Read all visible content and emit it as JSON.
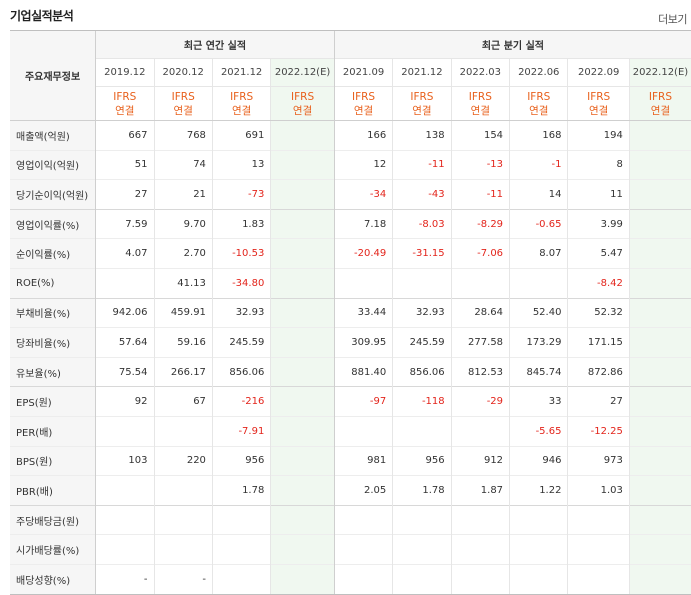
{
  "header": {
    "title": "기업실적분석",
    "more_label": "더보기"
  },
  "table": {
    "label_header": "주요재무정보",
    "annual_group": "최근 연간 실적",
    "quarter_group": "최근 분기 실적",
    "annual_periods": [
      "2019.12",
      "2020.12",
      "2021.12",
      "2022.12(E)"
    ],
    "quarter_periods": [
      "2021.09",
      "2021.12",
      "2022.03",
      "2022.06",
      "2022.09",
      "2022.12(E)"
    ],
    "ifrs_top": "IFRS",
    "ifrs_bottom": "연결",
    "rows": [
      {
        "label": "매출액(억원)",
        "values": [
          "667",
          "768",
          "691",
          "",
          "166",
          "138",
          "154",
          "168",
          "194",
          ""
        ]
      },
      {
        "label": "영업이익(억원)",
        "values": [
          "51",
          "74",
          "13",
          "",
          "12",
          "-11",
          "-13",
          "-1",
          "8",
          ""
        ]
      },
      {
        "label": "당기순이익(억원)",
        "values": [
          "27",
          "21",
          "-73",
          "",
          "-34",
          "-43",
          "-11",
          "14",
          "11",
          ""
        ]
      },
      {
        "label": "영업이익률(%)",
        "values": [
          "7.59",
          "9.70",
          "1.83",
          "",
          "7.18",
          "-8.03",
          "-8.29",
          "-0.65",
          "3.99",
          ""
        ]
      },
      {
        "label": "순이익률(%)",
        "values": [
          "4.07",
          "2.70",
          "-10.53",
          "",
          "-20.49",
          "-31.15",
          "-7.06",
          "8.07",
          "5.47",
          ""
        ]
      },
      {
        "label": "ROE(%)",
        "values": [
          "",
          "41.13",
          "-34.80",
          "",
          "",
          "",
          "",
          "",
          "-8.42",
          ""
        ]
      },
      {
        "label": "부채비율(%)",
        "values": [
          "942.06",
          "459.91",
          "32.93",
          "",
          "33.44",
          "32.93",
          "28.64",
          "52.40",
          "52.32",
          ""
        ]
      },
      {
        "label": "당좌비율(%)",
        "values": [
          "57.64",
          "59.16",
          "245.59",
          "",
          "309.95",
          "245.59",
          "277.58",
          "173.29",
          "171.15",
          ""
        ]
      },
      {
        "label": "유보율(%)",
        "values": [
          "75.54",
          "266.17",
          "856.06",
          "",
          "881.40",
          "856.06",
          "812.53",
          "845.74",
          "872.86",
          ""
        ]
      },
      {
        "label": "EPS(원)",
        "values": [
          "92",
          "67",
          "-216",
          "",
          "-97",
          "-118",
          "-29",
          "33",
          "27",
          ""
        ]
      },
      {
        "label": "PER(배)",
        "values": [
          "",
          "",
          "-7.91",
          "",
          "",
          "",
          "",
          "-5.65",
          "-12.25",
          ""
        ]
      },
      {
        "label": "BPS(원)",
        "values": [
          "103",
          "220",
          "956",
          "",
          "981",
          "956",
          "912",
          "946",
          "973",
          ""
        ]
      },
      {
        "label": "PBR(배)",
        "values": [
          "",
          "",
          "1.78",
          "",
          "2.05",
          "1.78",
          "1.87",
          "1.22",
          "1.03",
          ""
        ]
      },
      {
        "label": "주당배당금(원)",
        "values": [
          "",
          "",
          "",
          "",
          "",
          "",
          "",
          "",
          "",
          ""
        ]
      },
      {
        "label": "시가배당률(%)",
        "values": [
          "",
          "",
          "",
          "",
          "",
          "",
          "",
          "",
          "",
          ""
        ]
      },
      {
        "label": "배당성향(%)",
        "values": [
          "-",
          "-",
          "",
          "",
          "",
          "",
          "",
          "",
          "",
          ""
        ]
      }
    ]
  }
}
